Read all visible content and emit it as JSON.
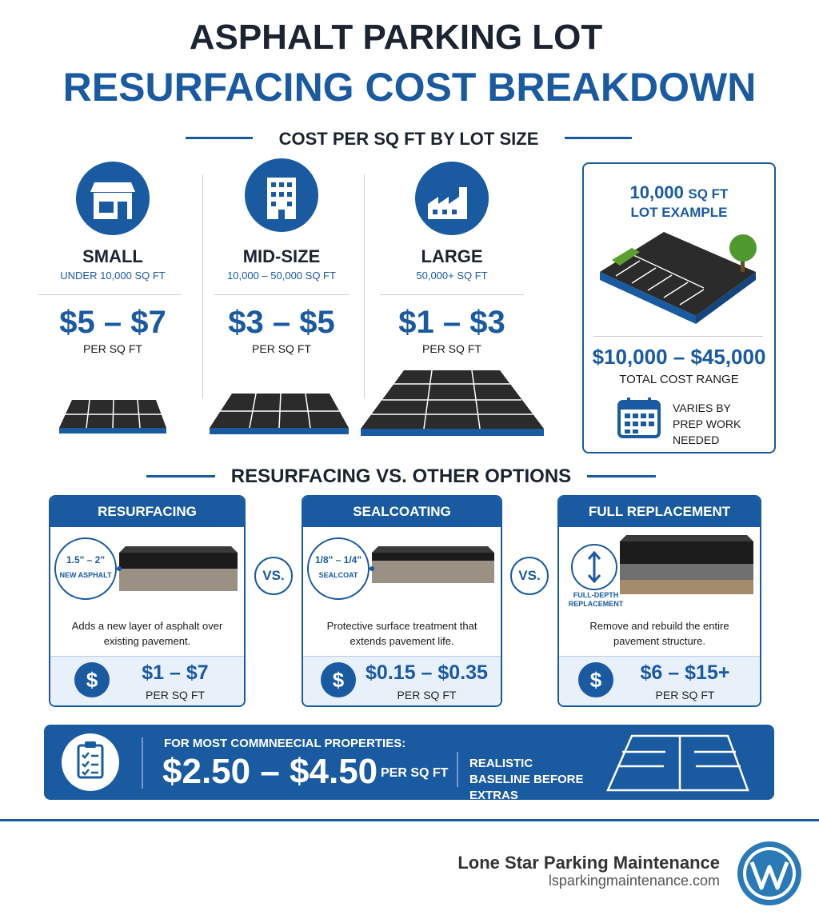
{
  "header": {
    "title_line1": "ASPHALT PARKING LOT",
    "title_line2": "RESURFACING COST BREAKDOWN"
  },
  "lot_sizes": {
    "heading": "COST PER SQ FT BY LOT SIZE",
    "tiers": [
      {
        "name": "SMALL",
        "range": "UNDER 10,000 SQ FT",
        "price": "$5 – $7",
        "unit": "PER SQ FT"
      },
      {
        "name": "MID-SIZE",
        "range": "10,000 – 50,000 SQ FT",
        "price": "$3 – $5",
        "unit": "PER SQ FT"
      },
      {
        "name": "LARGE",
        "range": "50,000+ SQ FT",
        "price": "$1 – $3",
        "unit": "PER SQ FT"
      }
    ],
    "example": {
      "size": "10,000",
      "size_unit": "SQ FT",
      "label": "LOT EXAMPLE",
      "price": "$10,000 – $45,000",
      "price_label": "TOTAL COST RANGE",
      "note": "VARIES BY PREP WORK NEEDED"
    }
  },
  "comparison": {
    "heading": "RESURFACING VS. OTHER OPTIONS",
    "vs": "VS.",
    "currency_icon": "$",
    "options": [
      {
        "name": "RESURFACING",
        "layer_label": "1.5\" – 2\"",
        "layer_sublabel": "NEW ASPHALT",
        "description": "Adds a new layer of asphalt over existing pavement.",
        "price": "$1 – $7",
        "unit": "PER SQ FT"
      },
      {
        "name": "SEALCOATING",
        "layer_label": "1/8\" – 1/4\"",
        "layer_sublabel": "SEALCOAT",
        "description": "Protective surface treatment that extends pavement life.",
        "price": "$0.15 – $0.35",
        "unit": "PER SQ FT"
      },
      {
        "name": "FULL REPLACEMENT",
        "layer_label": "FULL-DEPTH REPLACEMENT",
        "description": "Remove and rebuild the entire pavement structure.",
        "price": "$6 – $15+",
        "unit": "PER SQ FT"
      }
    ]
  },
  "summary": {
    "label": "FOR MOST COMMNEECIAL PROPERTIES:",
    "price": "$2.50 – $4.50",
    "unit": "PER SQ FT",
    "note": "REALISTIC BASELINE BEFORE EXTRAS"
  },
  "footer": {
    "company": "Lone Star Parking Maintenance",
    "website": "lsparkingmaintenance.com"
  }
}
